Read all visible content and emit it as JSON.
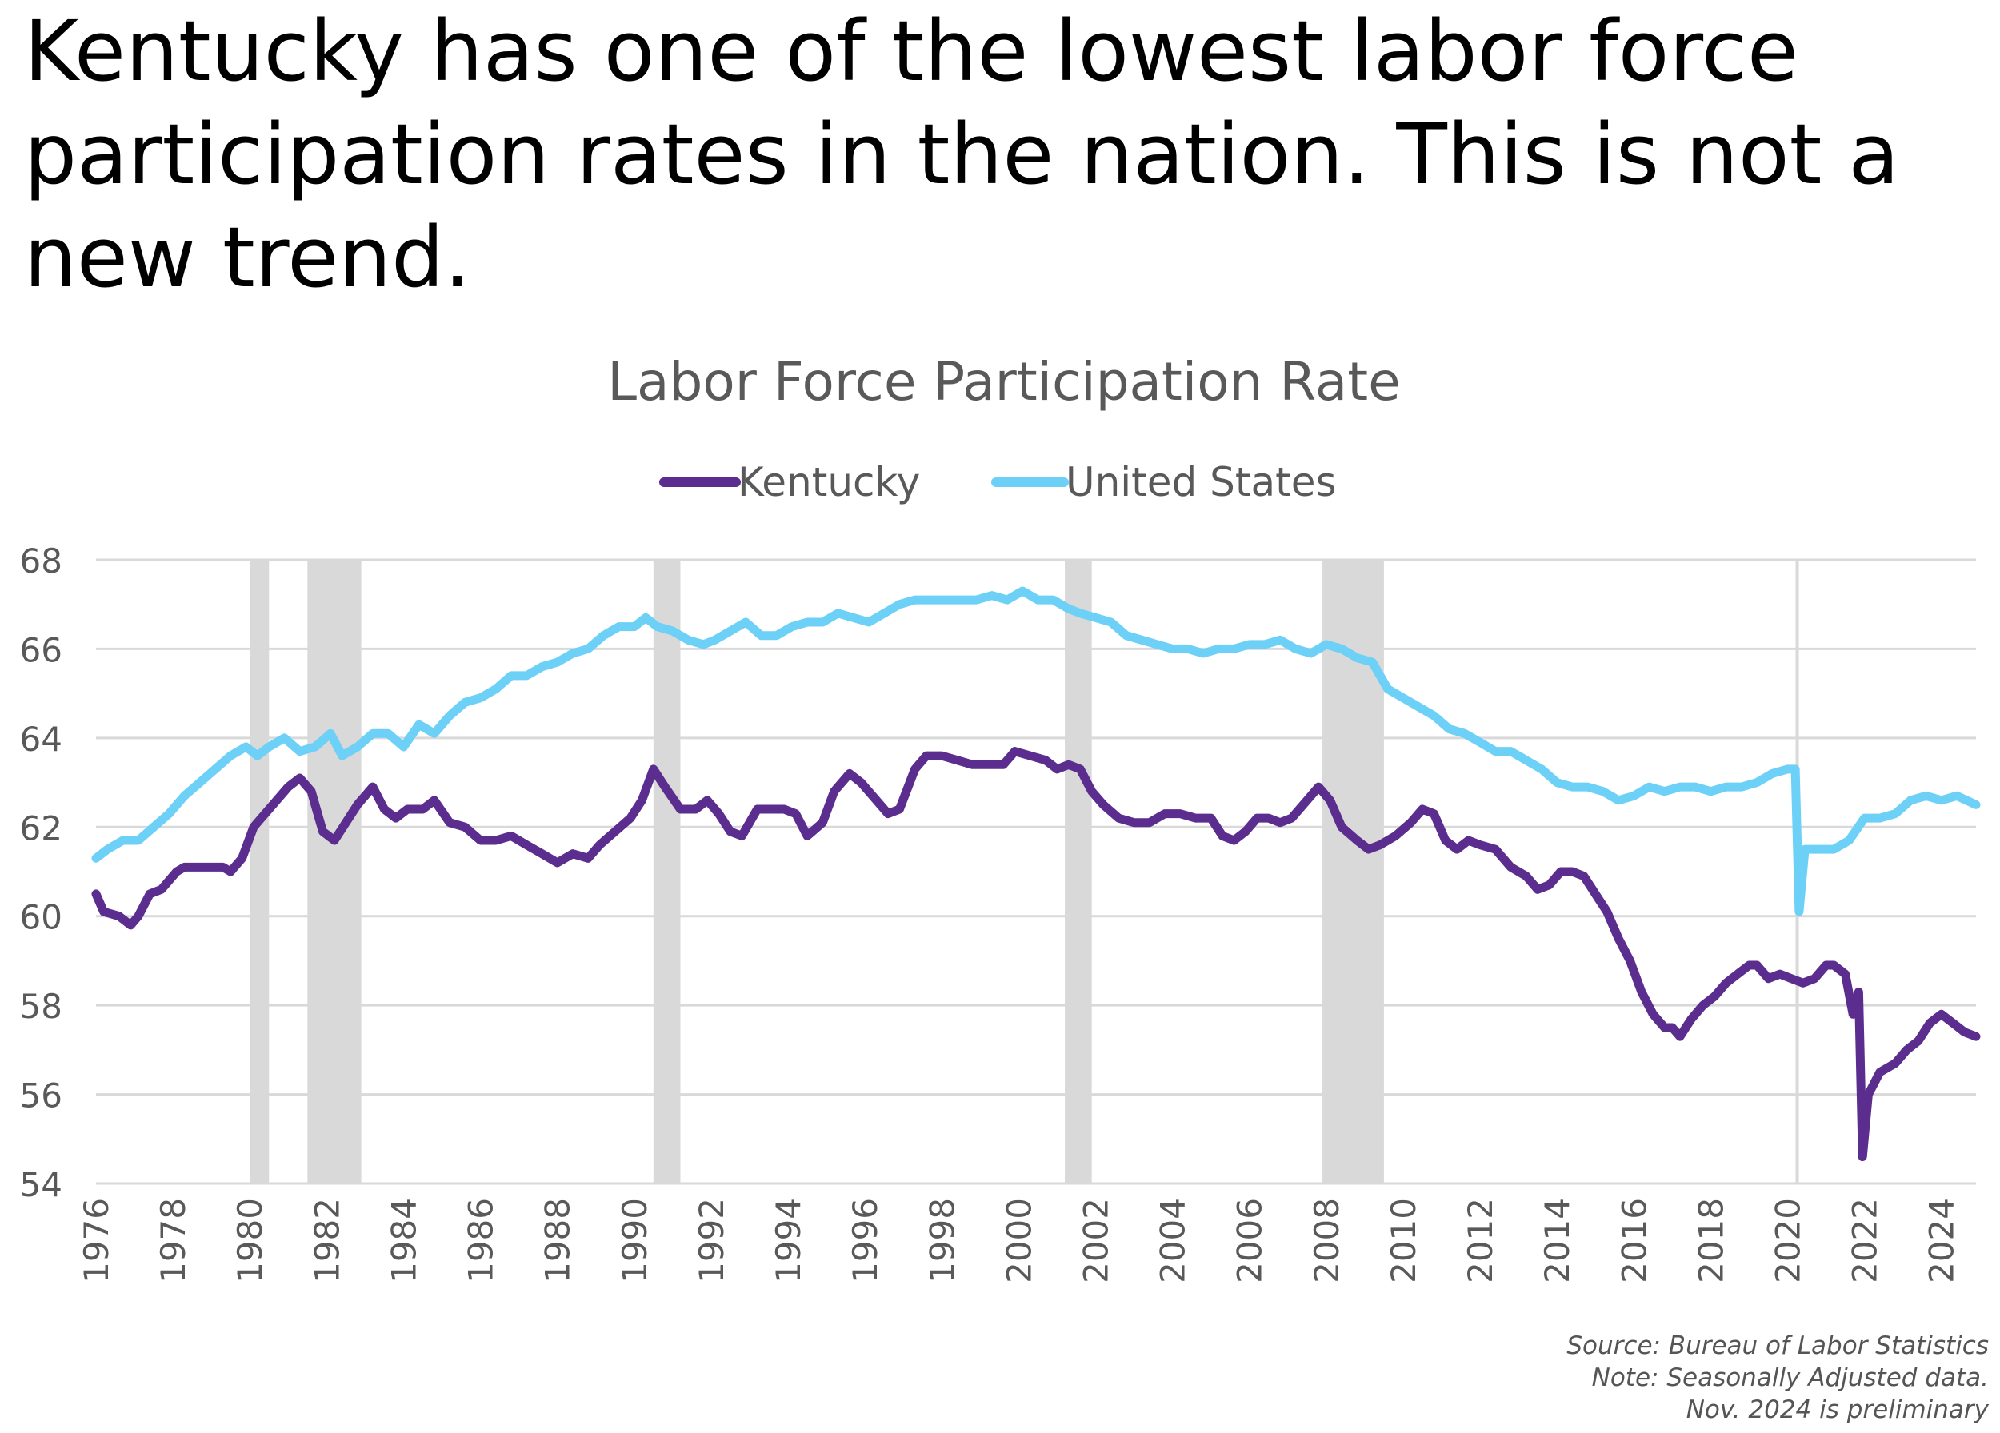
{
  "headline": "Kentucky has one of the lowest labor force participation rates in the nation. This is not a new trend.",
  "source_note": "Source: Bureau of Labor Statistics",
  "adjust_note": "Note: Seasonally Adjusted data.",
  "prelim_note": "Nov. 2024 is preliminary",
  "colors": {
    "kentucky": "#5b2d8e",
    "united_states": "#6dd0f7",
    "recession": "#d9d9d9",
    "grid": "#d9d9d9",
    "text": "#595959"
  },
  "chart_data": {
    "type": "line",
    "title": "Labor Force Participation Rate",
    "xlabel": "",
    "ylabel": "",
    "xlim": [
      1976.0,
      2024.9
    ],
    "ylim": [
      54,
      68
    ],
    "yticks": [
      54,
      56,
      58,
      60,
      62,
      64,
      66,
      68
    ],
    "xticks": [
      1976,
      1978,
      1980,
      1982,
      1984,
      1986,
      1988,
      1990,
      1992,
      1994,
      1996,
      1998,
      2000,
      2002,
      2004,
      2006,
      2008,
      2010,
      2012,
      2014,
      2016,
      2018,
      2020,
      2022,
      2024
    ],
    "grid": true,
    "legend": "top-center",
    "recessions": [
      [
        1980.0,
        1980.5
      ],
      [
        1981.5,
        1982.9
      ],
      [
        1990.5,
        1991.2
      ],
      [
        2001.2,
        2001.9
      ],
      [
        2007.9,
        2009.5
      ]
    ],
    "series": [
      {
        "name": "Kentucky",
        "color": "#5b2d8e",
        "points": [
          [
            1976.0,
            60.5
          ],
          [
            1976.2,
            60.1
          ],
          [
            1976.6,
            60.0
          ],
          [
            1976.9,
            59.8
          ],
          [
            1977.1,
            60.0
          ],
          [
            1977.4,
            60.5
          ],
          [
            1977.7,
            60.6
          ],
          [
            1978.1,
            61.0
          ],
          [
            1978.3,
            61.1
          ],
          [
            1978.7,
            61.1
          ],
          [
            1979.0,
            61.1
          ],
          [
            1979.3,
            61.1
          ],
          [
            1979.5,
            61.0
          ],
          [
            1979.8,
            61.3
          ],
          [
            1980.1,
            62.0
          ],
          [
            1980.3,
            62.2
          ],
          [
            1980.6,
            62.5
          ],
          [
            1981.0,
            62.9
          ],
          [
            1981.3,
            63.1
          ],
          [
            1981.6,
            62.8
          ],
          [
            1981.9,
            61.9
          ],
          [
            1982.2,
            61.7
          ],
          [
            1982.5,
            62.1
          ],
          [
            1982.8,
            62.5
          ],
          [
            1983.2,
            62.9
          ],
          [
            1983.5,
            62.4
          ],
          [
            1983.8,
            62.2
          ],
          [
            1984.1,
            62.4
          ],
          [
            1984.5,
            62.4
          ],
          [
            1984.8,
            62.6
          ],
          [
            1985.2,
            62.1
          ],
          [
            1985.6,
            62.0
          ],
          [
            1986.0,
            61.7
          ],
          [
            1986.4,
            61.7
          ],
          [
            1986.8,
            61.8
          ],
          [
            1987.2,
            61.6
          ],
          [
            1987.6,
            61.4
          ],
          [
            1988.0,
            61.2
          ],
          [
            1988.4,
            61.4
          ],
          [
            1988.8,
            61.3
          ],
          [
            1989.1,
            61.6
          ],
          [
            1989.5,
            61.9
          ],
          [
            1989.9,
            62.2
          ],
          [
            1990.2,
            62.6
          ],
          [
            1990.5,
            63.3
          ],
          [
            1990.8,
            62.9
          ],
          [
            1991.2,
            62.4
          ],
          [
            1991.6,
            62.4
          ],
          [
            1991.9,
            62.6
          ],
          [
            1992.2,
            62.3
          ],
          [
            1992.5,
            61.9
          ],
          [
            1992.8,
            61.8
          ],
          [
            1993.2,
            62.4
          ],
          [
            1993.5,
            62.4
          ],
          [
            1993.9,
            62.4
          ],
          [
            1994.2,
            62.3
          ],
          [
            1994.5,
            61.8
          ],
          [
            1994.9,
            62.1
          ],
          [
            1995.2,
            62.8
          ],
          [
            1995.6,
            63.2
          ],
          [
            1995.9,
            63.0
          ],
          [
            1996.3,
            62.6
          ],
          [
            1996.6,
            62.3
          ],
          [
            1996.9,
            62.4
          ],
          [
            1997.3,
            63.3
          ],
          [
            1997.6,
            63.6
          ],
          [
            1998.0,
            63.6
          ],
          [
            1998.4,
            63.5
          ],
          [
            1998.8,
            63.4
          ],
          [
            1999.2,
            63.4
          ],
          [
            1999.6,
            63.4
          ],
          [
            1999.9,
            63.7
          ],
          [
            2000.3,
            63.6
          ],
          [
            2000.7,
            63.5
          ],
          [
            2001.0,
            63.3
          ],
          [
            2001.3,
            63.4
          ],
          [
            2001.6,
            63.3
          ],
          [
            2001.9,
            62.8
          ],
          [
            2002.2,
            62.5
          ],
          [
            2002.6,
            62.2
          ],
          [
            2003.0,
            62.1
          ],
          [
            2003.4,
            62.1
          ],
          [
            2003.8,
            62.3
          ],
          [
            2004.2,
            62.3
          ],
          [
            2004.6,
            62.2
          ],
          [
            2005.0,
            62.2
          ],
          [
            2005.3,
            61.8
          ],
          [
            2005.6,
            61.7
          ],
          [
            2005.9,
            61.9
          ],
          [
            2006.2,
            62.2
          ],
          [
            2006.5,
            62.2
          ],
          [
            2006.8,
            62.1
          ],
          [
            2007.1,
            62.2
          ],
          [
            2007.5,
            62.6
          ],
          [
            2007.8,
            62.9
          ],
          [
            2008.1,
            62.6
          ],
          [
            2008.4,
            62.0
          ],
          [
            2008.8,
            61.7
          ],
          [
            2009.1,
            61.5
          ],
          [
            2009.4,
            61.6
          ],
          [
            2009.8,
            61.8
          ],
          [
            2010.2,
            62.1
          ],
          [
            2010.5,
            62.4
          ],
          [
            2010.8,
            62.3
          ],
          [
            2011.1,
            61.7
          ],
          [
            2011.4,
            61.5
          ],
          [
            2011.7,
            61.7
          ],
          [
            2012.0,
            61.6
          ],
          [
            2012.4,
            61.5
          ],
          [
            2012.8,
            61.1
          ],
          [
            2013.2,
            60.9
          ],
          [
            2013.5,
            60.6
          ],
          [
            2013.8,
            60.7
          ],
          [
            2014.1,
            61.0
          ],
          [
            2014.4,
            61.0
          ],
          [
            2014.7,
            60.9
          ],
          [
            2015.0,
            60.5
          ],
          [
            2015.3,
            60.1
          ],
          [
            2015.6,
            59.5
          ],
          [
            2015.9,
            59.0
          ],
          [
            2016.2,
            58.3
          ],
          [
            2016.5,
            57.8
          ],
          [
            2016.8,
            57.5
          ],
          [
            2017.0,
            57.5
          ],
          [
            2017.2,
            57.3
          ],
          [
            2017.5,
            57.7
          ],
          [
            2017.8,
            58.0
          ],
          [
            2018.1,
            58.2
          ],
          [
            2018.4,
            58.5
          ],
          [
            2018.7,
            58.7
          ],
          [
            2019.0,
            58.9
          ],
          [
            2019.2,
            58.9
          ],
          [
            2019.5,
            58.6
          ],
          [
            2019.8,
            58.7
          ],
          [
            2020.1,
            58.6
          ],
          [
            2020.4,
            58.5
          ],
          [
            2020.7,
            58.6
          ],
          [
            2021.0,
            58.9
          ],
          [
            2021.2,
            58.9
          ],
          [
            2021.5,
            58.7
          ],
          [
            2021.7,
            57.8
          ],
          [
            2021.85,
            58.3
          ],
          [
            2021.95,
            54.6
          ],
          [
            2022.1,
            56.0
          ],
          [
            2022.4,
            56.5
          ],
          [
            2022.8,
            56.7
          ],
          [
            2023.1,
            57.0
          ],
          [
            2023.4,
            57.2
          ],
          [
            2023.7,
            57.6
          ],
          [
            2024.0,
            57.8
          ],
          [
            2024.3,
            57.6
          ],
          [
            2024.6,
            57.4
          ],
          [
            2024.9,
            57.3
          ]
        ]
      },
      {
        "name": "United States",
        "color": "#6dd0f7",
        "points": [
          [
            1976.0,
            61.3
          ],
          [
            1976.3,
            61.5
          ],
          [
            1976.7,
            61.7
          ],
          [
            1977.1,
            61.7
          ],
          [
            1977.5,
            62.0
          ],
          [
            1977.9,
            62.3
          ],
          [
            1978.3,
            62.7
          ],
          [
            1978.7,
            63.0
          ],
          [
            1979.1,
            63.3
          ],
          [
            1979.5,
            63.6
          ],
          [
            1979.9,
            63.8
          ],
          [
            1980.2,
            63.6
          ],
          [
            1980.5,
            63.8
          ],
          [
            1980.9,
            64.0
          ],
          [
            1981.3,
            63.7
          ],
          [
            1981.7,
            63.8
          ],
          [
            1982.1,
            64.1
          ],
          [
            1982.4,
            63.6
          ],
          [
            1982.8,
            63.8
          ],
          [
            1983.2,
            64.1
          ],
          [
            1983.6,
            64.1
          ],
          [
            1984.0,
            63.8
          ],
          [
            1984.4,
            64.3
          ],
          [
            1984.8,
            64.1
          ],
          [
            1985.2,
            64.5
          ],
          [
            1985.6,
            64.8
          ],
          [
            1986.0,
            64.9
          ],
          [
            1986.4,
            65.1
          ],
          [
            1986.8,
            65.4
          ],
          [
            1987.2,
            65.4
          ],
          [
            1987.6,
            65.6
          ],
          [
            1988.0,
            65.7
          ],
          [
            1988.4,
            65.9
          ],
          [
            1988.8,
            66.0
          ],
          [
            1989.2,
            66.3
          ],
          [
            1989.6,
            66.5
          ],
          [
            1990.0,
            66.5
          ],
          [
            1990.3,
            66.7
          ],
          [
            1990.6,
            66.5
          ],
          [
            1991.0,
            66.4
          ],
          [
            1991.4,
            66.2
          ],
          [
            1991.8,
            66.1
          ],
          [
            1992.1,
            66.2
          ],
          [
            1992.5,
            66.4
          ],
          [
            1992.9,
            66.6
          ],
          [
            1993.3,
            66.3
          ],
          [
            1993.7,
            66.3
          ],
          [
            1994.1,
            66.5
          ],
          [
            1994.5,
            66.6
          ],
          [
            1994.9,
            66.6
          ],
          [
            1995.3,
            66.8
          ],
          [
            1995.7,
            66.7
          ],
          [
            1996.1,
            66.6
          ],
          [
            1996.5,
            66.8
          ],
          [
            1996.9,
            67.0
          ],
          [
            1997.3,
            67.1
          ],
          [
            1997.7,
            67.1
          ],
          [
            1998.1,
            67.1
          ],
          [
            1998.5,
            67.1
          ],
          [
            1998.9,
            67.1
          ],
          [
            1999.3,
            67.2
          ],
          [
            1999.7,
            67.1
          ],
          [
            2000.1,
            67.3
          ],
          [
            2000.5,
            67.1
          ],
          [
            2000.9,
            67.1
          ],
          [
            2001.3,
            66.9
          ],
          [
            2001.6,
            66.8
          ],
          [
            2002.0,
            66.7
          ],
          [
            2002.4,
            66.6
          ],
          [
            2002.8,
            66.3
          ],
          [
            2003.2,
            66.2
          ],
          [
            2003.6,
            66.1
          ],
          [
            2004.0,
            66.0
          ],
          [
            2004.4,
            66.0
          ],
          [
            2004.8,
            65.9
          ],
          [
            2005.2,
            66.0
          ],
          [
            2005.6,
            66.0
          ],
          [
            2006.0,
            66.1
          ],
          [
            2006.4,
            66.1
          ],
          [
            2006.8,
            66.2
          ],
          [
            2007.2,
            66.0
          ],
          [
            2007.6,
            65.9
          ],
          [
            2008.0,
            66.1
          ],
          [
            2008.4,
            66.0
          ],
          [
            2008.8,
            65.8
          ],
          [
            2009.2,
            65.7
          ],
          [
            2009.6,
            65.1
          ],
          [
            2010.0,
            64.9
          ],
          [
            2010.4,
            64.7
          ],
          [
            2010.8,
            64.5
          ],
          [
            2011.2,
            64.2
          ],
          [
            2011.6,
            64.1
          ],
          [
            2012.0,
            63.9
          ],
          [
            2012.4,
            63.7
          ],
          [
            2012.8,
            63.7
          ],
          [
            2013.2,
            63.5
          ],
          [
            2013.6,
            63.3
          ],
          [
            2014.0,
            63.0
          ],
          [
            2014.4,
            62.9
          ],
          [
            2014.8,
            62.9
          ],
          [
            2015.2,
            62.8
          ],
          [
            2015.6,
            62.6
          ],
          [
            2016.0,
            62.7
          ],
          [
            2016.4,
            62.9
          ],
          [
            2016.8,
            62.8
          ],
          [
            2017.2,
            62.9
          ],
          [
            2017.6,
            62.9
          ],
          [
            2018.0,
            62.8
          ],
          [
            2018.4,
            62.9
          ],
          [
            2018.8,
            62.9
          ],
          [
            2019.2,
            63.0
          ],
          [
            2019.6,
            63.2
          ],
          [
            2020.0,
            63.3
          ],
          [
            2020.2,
            63.3
          ],
          [
            2020.3,
            60.1
          ],
          [
            2020.45,
            61.5
          ],
          [
            2020.8,
            61.5
          ],
          [
            2021.2,
            61.5
          ],
          [
            2021.6,
            61.7
          ],
          [
            2022.0,
            62.2
          ],
          [
            2022.4,
            62.2
          ],
          [
            2022.8,
            62.3
          ],
          [
            2023.2,
            62.6
          ],
          [
            2023.6,
            62.7
          ],
          [
            2024.0,
            62.6
          ],
          [
            2024.4,
            62.7
          ],
          [
            2024.9,
            62.5
          ]
        ]
      }
    ]
  }
}
